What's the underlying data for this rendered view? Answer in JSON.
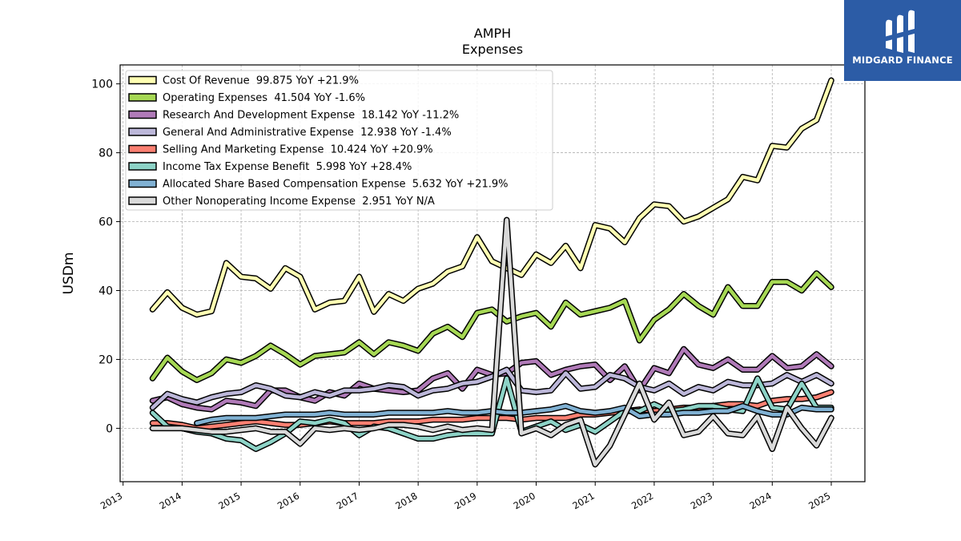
{
  "brand": {
    "name": "MIDGARD FINANCE",
    "bg": "#2c5ca6"
  },
  "chart_data": {
    "type": "line",
    "title": "AMPH",
    "subtitle": "Expenses",
    "ylabel": "USDm",
    "xlabel": "",
    "xlim": [
      2012.95,
      2025.57
    ],
    "ylim": [
      -15.5,
      105.5
    ],
    "yticks": [
      0,
      20,
      40,
      60,
      80,
      100
    ],
    "xticks": [
      "2013",
      "2014",
      "2015",
      "2016",
      "2017",
      "2018",
      "2019",
      "2020",
      "2021",
      "2022",
      "2023",
      "2024",
      "2025"
    ],
    "grid": true,
    "legend_position": "top-left",
    "x": [
      2013.5,
      2013.75,
      2014.0,
      2014.25,
      2014.5,
      2014.75,
      2015.0,
      2015.25,
      2015.5,
      2015.75,
      2016.0,
      2016.25,
      2016.5,
      2016.75,
      2017.0,
      2017.25,
      2017.5,
      2017.75,
      2018.0,
      2018.25,
      2018.5,
      2018.75,
      2019.0,
      2019.25,
      2019.5,
      2019.75,
      2020.0,
      2020.25,
      2020.5,
      2020.75,
      2021.0,
      2021.25,
      2021.5,
      2021.75,
      2022.0,
      2022.25,
      2022.5,
      2022.75,
      2023.0,
      2023.25,
      2023.5,
      2023.75,
      2024.0,
      2024.25,
      2024.5,
      2024.75,
      2025.0
    ],
    "series": [
      {
        "name": "Cost Of Revenue",
        "value": "99.875",
        "yoy": "+21.9%",
        "color": "#ffffb3",
        "values": [
          34.5,
          39.5,
          35,
          33,
          34,
          48,
          44,
          43.5,
          40.5,
          46.5,
          44,
          34.5,
          36.5,
          37,
          44,
          33.8,
          39,
          37,
          40.5,
          42,
          45.5,
          47,
          55.5,
          48.5,
          46.5,
          44.5,
          50.5,
          48,
          53,
          46.5,
          59,
          58,
          54,
          61,
          65,
          64.5,
          60,
          61.5,
          64,
          66.5,
          73,
          72,
          82,
          81.5,
          87,
          89.5,
          101
        ]
      },
      {
        "name": "Operating Expenses",
        "value": "41.504",
        "yoy": "-1.6%",
        "color": "#a6d854",
        "values": [
          14.5,
          20.5,
          16.5,
          14,
          16,
          20,
          19,
          21,
          24,
          21.5,
          18.5,
          21,
          21.5,
          22,
          25,
          21.5,
          25,
          24,
          22.5,
          27.5,
          29.5,
          26.5,
          33.5,
          34.5,
          31,
          32.5,
          33.5,
          29.5,
          36.5,
          33,
          34,
          35,
          37,
          25.5,
          31.5,
          34.5,
          39,
          35.5,
          33,
          41,
          35.5,
          35.5,
          42.5,
          42.5,
          40,
          45,
          41
        ]
      },
      {
        "name": "Research And Development Expense",
        "value": "18.142",
        "yoy": "-11.2%",
        "color": "#b07ab8",
        "values": [
          8,
          9,
          7,
          6,
          5.5,
          8,
          7.5,
          6.5,
          11,
          11,
          9,
          8,
          10.5,
          9.5,
          13,
          11.5,
          11,
          10.5,
          11,
          14.5,
          16,
          11.5,
          17,
          15.5,
          16,
          19,
          19.5,
          15.5,
          17,
          18,
          18.5,
          14,
          18,
          11,
          17.5,
          16,
          23,
          18.5,
          17.5,
          20,
          17,
          17,
          21,
          17.5,
          18,
          21.5,
          18
        ]
      },
      {
        "name": "General And Administrative Expense",
        "value": "12.938",
        "yoy": "-1.4%",
        "color": "#bcb7d9",
        "values": [
          6,
          10,
          8.5,
          7.5,
          9,
          10,
          10.5,
          12.5,
          11.5,
          9.5,
          9,
          10.5,
          9.5,
          11,
          11,
          11.5,
          12.5,
          12,
          9.5,
          11,
          11.5,
          13,
          13.5,
          15,
          17,
          11,
          10.5,
          11,
          16,
          11.5,
          12,
          15.5,
          14.5,
          12,
          11,
          13,
          10,
          12,
          11,
          13.5,
          12.5,
          12.5,
          13,
          15.5,
          13.5,
          15.5,
          13
        ]
      },
      {
        "name": "Selling And Marketing Expense",
        "value": "10.424",
        "yoy": "+20.9%",
        "color": "#fb8072",
        "values": [
          1.5,
          1.5,
          1,
          0,
          0.5,
          1,
          1.5,
          2,
          1.5,
          1,
          1,
          1.5,
          2,
          1.5,
          1.5,
          1.5,
          2,
          2,
          2,
          2.5,
          2.5,
          2.5,
          3,
          3,
          3,
          2.5,
          3,
          3,
          3,
          4,
          4,
          4.5,
          5,
          5.5,
          5,
          5.5,
          6,
          6,
          6.5,
          7,
          7,
          6.5,
          8,
          8.5,
          8.5,
          9,
          10.5
        ]
      },
      {
        "name": "Income Tax Expense Benefit",
        "value": "5.998",
        "yoy": "+28.4%",
        "color": "#8dd3c7",
        "values": [
          4.5,
          0.5,
          0,
          -1,
          -1.5,
          -3,
          -3.5,
          -6,
          -4,
          -1.5,
          2,
          1.5,
          2.5,
          1.5,
          -2,
          0.5,
          0,
          -1.5,
          -3,
          -3,
          -2,
          -1.5,
          -1.5,
          -1.5,
          14.5,
          -1,
          0.5,
          2,
          -0.5,
          1,
          -1,
          2,
          5,
          5,
          7,
          5,
          5.5,
          6.5,
          6.5,
          5.5,
          5,
          14.5,
          6,
          5.5,
          13,
          6,
          6
        ]
      },
      {
        "name": "Allocated Share Based Compensation Expense",
        "value": "5.632",
        "yoy": "+21.9%",
        "color": "#80b1d3",
        "values": [
          null,
          null,
          null,
          1.5,
          2.5,
          3,
          3,
          3,
          3.5,
          4,
          4,
          4,
          4.5,
          4,
          4,
          4,
          4.5,
          4.5,
          4.5,
          4.5,
          5,
          4.5,
          4.5,
          5,
          4.5,
          4.5,
          5,
          5.5,
          6.5,
          5,
          4.5,
          5,
          6,
          3.5,
          4,
          4,
          4.5,
          4.5,
          5,
          5,
          6.5,
          5,
          4,
          4,
          6,
          5.5,
          5.5
        ]
      },
      {
        "name": "Other Nonoperating Income Expense",
        "value": "2.951",
        "yoy": "N/A",
        "color": "#d9d9d9",
        "values": [
          0,
          0,
          0,
          -0.5,
          -1,
          -1,
          -0.5,
          0,
          -1,
          -1,
          -4.5,
          0,
          -0.5,
          0,
          -0.5,
          0,
          1,
          1,
          0.5,
          -0.5,
          0.5,
          -0.5,
          0,
          -0.5,
          60.5,
          -1.5,
          0,
          -2,
          1,
          2.5,
          -10.5,
          -5,
          4,
          13,
          2.5,
          7.5,
          -2,
          -1,
          3.5,
          -1.5,
          -2,
          3.5,
          -6,
          6,
          0,
          -5,
          3
        ]
      }
    ]
  }
}
